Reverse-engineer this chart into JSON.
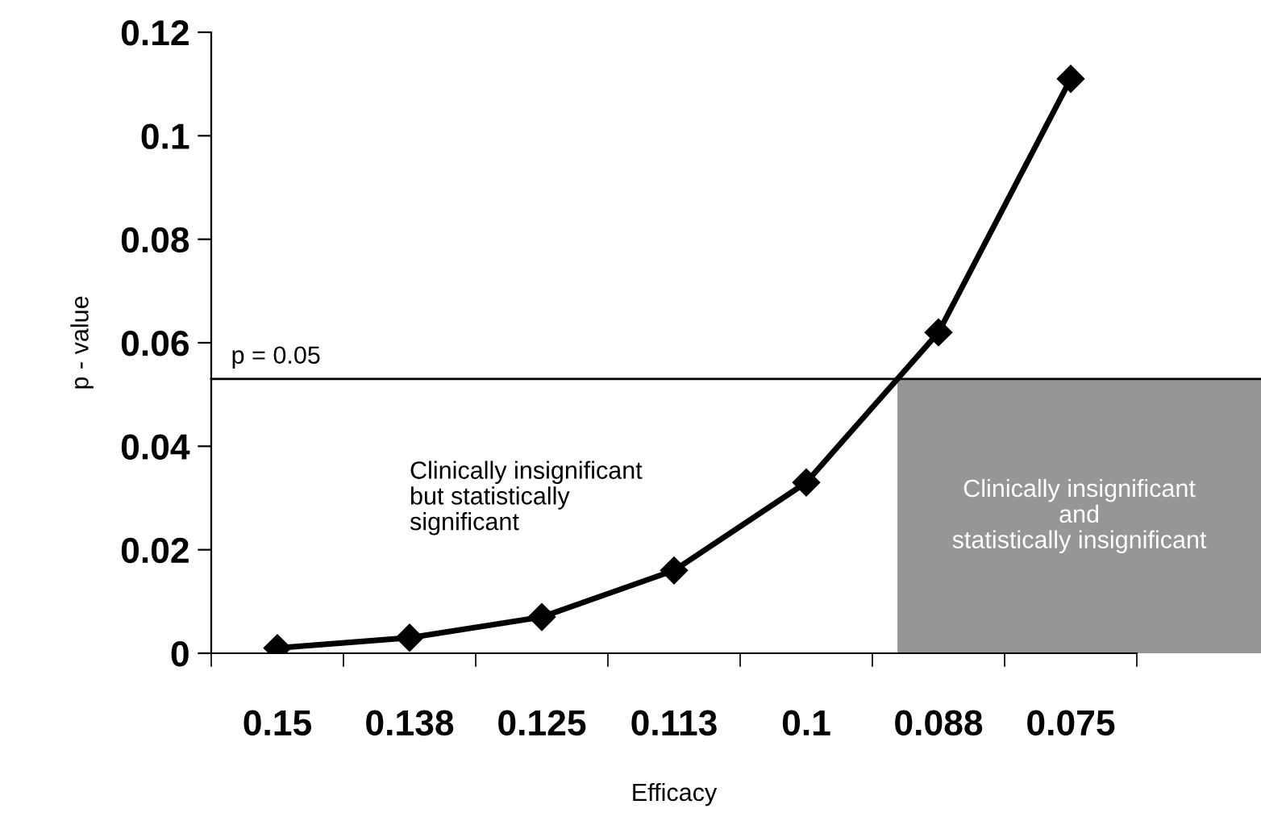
{
  "chart_data": {
    "type": "line",
    "xlabel": "Efficacy",
    "ylabel": "p - value",
    "categories": [
      "0.15",
      "0.138",
      "0.125",
      "0.113",
      "0.1",
      "0.088",
      "0.075"
    ],
    "series": [
      {
        "color": "#000000",
        "values": [
          0.001,
          0.003,
          0.007,
          0.016,
          0.033,
          0.062,
          0.111
        ]
      }
    ],
    "marker": "diamond",
    "line_style": "solid",
    "ylim": [
      0,
      0.12
    ],
    "yticks": [
      {
        "value": 0,
        "label": "0"
      },
      0.02,
      0.04,
      0.06,
      0.08,
      0.1,
      0.12
    ],
    "ref_lines": [
      {
        "axis": "y",
        "value": 0.053,
        "label": "p = 0.05",
        "color": "#000000"
      }
    ],
    "bands": [
      {
        "axis": "y",
        "from": 0,
        "to": 0.053,
        "label": "Clinically insignificant\nand\nstatistically insignificant",
        "color": "#969696"
      }
    ],
    "annotations": [
      "Clinically insignificant\nbut statistically\nsignificant"
    ],
    "grid": false,
    "legend": false
  }
}
